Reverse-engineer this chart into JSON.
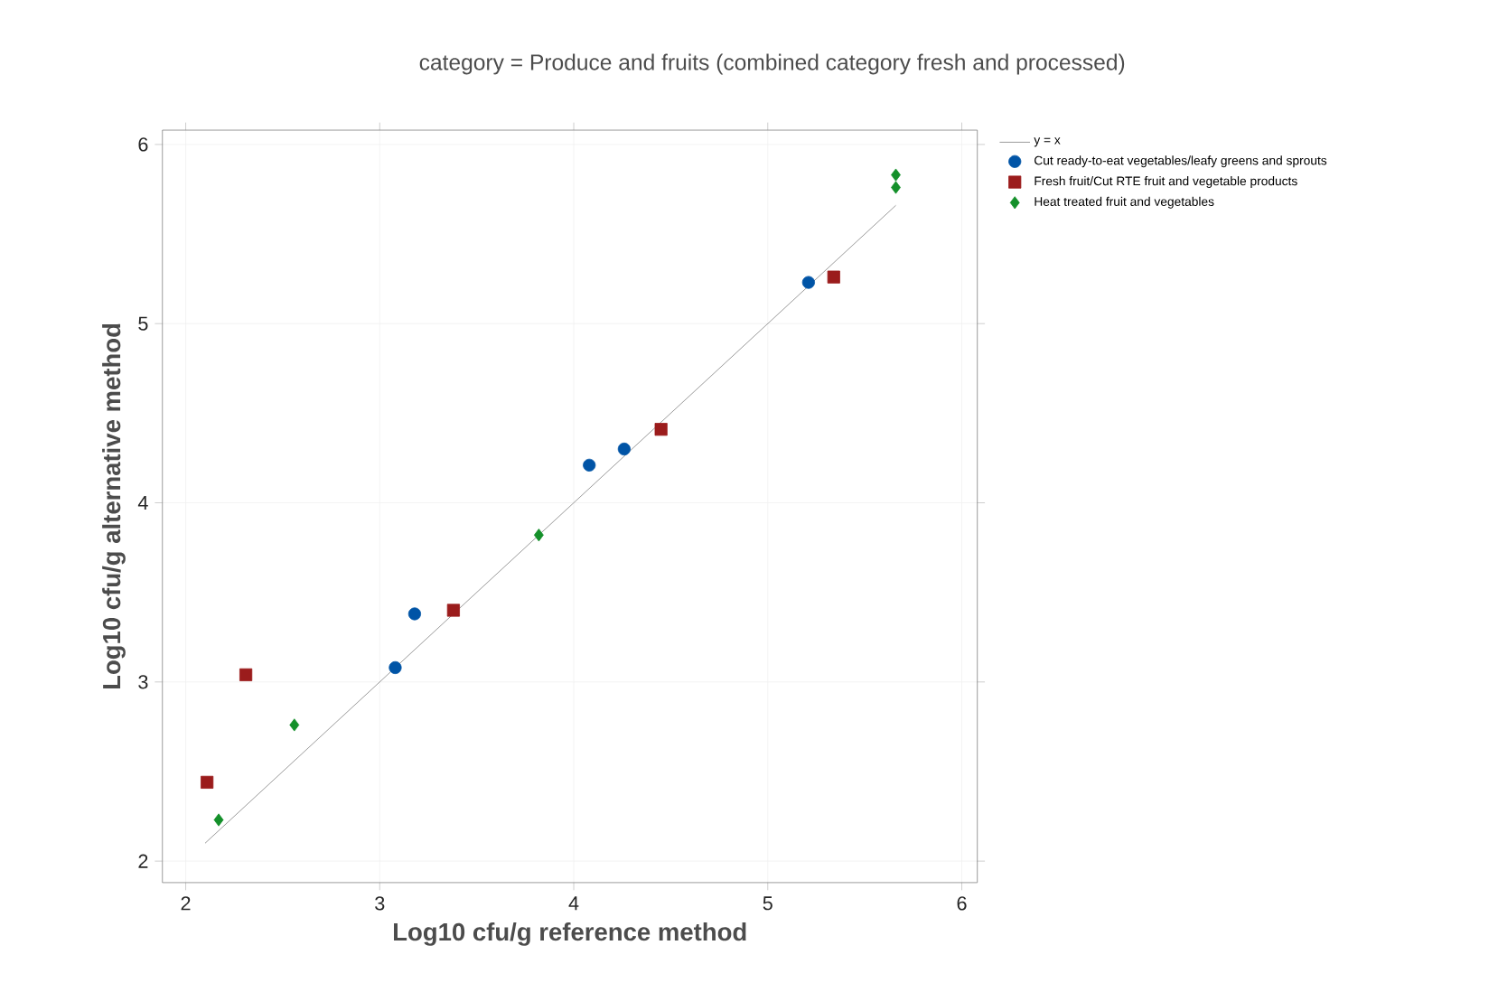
{
  "chart_data": {
    "type": "scatter",
    "title": "category = Produce and fruits (combined category fresh and processed)",
    "xlabel": "Log10 cfu/g reference method",
    "ylabel": "Log10 cfu/g alternative method",
    "xlim": [
      1.88,
      6.08
    ],
    "ylim": [
      1.88,
      6.08
    ],
    "xticks": [
      2,
      3,
      4,
      5,
      6
    ],
    "yticks": [
      2,
      3,
      4,
      5,
      6
    ],
    "grid": true,
    "legend": "right",
    "series": [
      {
        "name": "y = x",
        "type": "line",
        "color": "#808080",
        "line_style": "solid",
        "marker": "none",
        "x": [
          2.1,
          5.66
        ],
        "values": [
          2.1,
          5.66
        ]
      },
      {
        "name": "Cut ready-to-eat vegetables/leafy greens and sprouts",
        "color": "#0054a6",
        "marker": "circle",
        "x": [
          3.08,
          3.18,
          4.08,
          4.26,
          5.21
        ],
        "values": [
          3.08,
          3.38,
          4.21,
          4.3,
          5.23
        ]
      },
      {
        "name": "Fresh fruit/Cut RTE fruit and vegetable products",
        "color": "#9b1c1c",
        "marker": "square",
        "x": [
          2.11,
          2.31,
          3.38,
          4.45,
          5.34
        ],
        "values": [
          2.44,
          3.04,
          3.4,
          4.41,
          5.26
        ]
      },
      {
        "name": "Heat treated fruit and vegetables",
        "color": "#14902a",
        "marker": "diamond",
        "x": [
          2.17,
          2.56,
          3.82,
          5.66,
          5.66
        ],
        "values": [
          2.23,
          2.76,
          3.82,
          5.83,
          5.76
        ]
      }
    ]
  }
}
